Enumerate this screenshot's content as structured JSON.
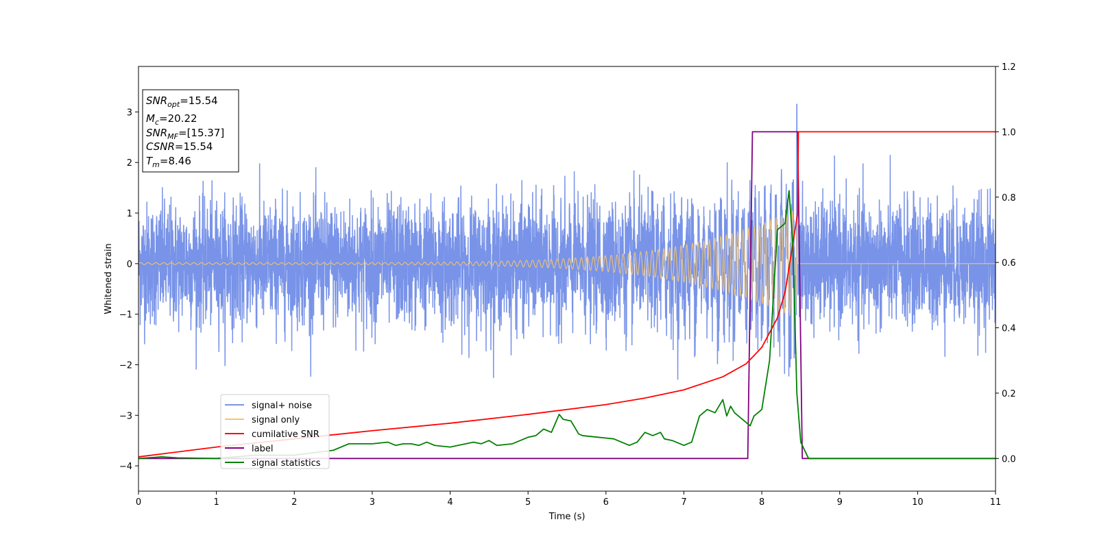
{
  "chart_data": {
    "type": "line",
    "xlabel": "Time (s)",
    "ylabel": "Whitened strain",
    "xlim": [
      0,
      11
    ],
    "ylim_left": [
      -4.5,
      3.9
    ],
    "ylim_right": [
      -0.1,
      1.2
    ],
    "x_ticks": [
      0,
      1,
      2,
      3,
      4,
      5,
      6,
      7,
      8,
      9,
      10,
      11
    ],
    "y_ticks_left": [
      -4,
      -3,
      -2,
      -1,
      0,
      1,
      2,
      3
    ],
    "y_ticks_left_labels": [
      "−4",
      "−3",
      "−2",
      "−1",
      "0",
      "1",
      "2",
      "3"
    ],
    "y_ticks_right": [
      0.0,
      0.2,
      0.4,
      0.6,
      0.8,
      1.0,
      1.2
    ],
    "y_ticks_right_labels": [
      "0.0",
      "0.2",
      "0.4",
      "0.6",
      "0.8",
      "1.0",
      "1.2"
    ],
    "legend_position": "lower-left",
    "info_box": {
      "snr_opt": "15.54",
      "mc": "20.22",
      "snr_mf": "[15.37]",
      "csnr": "15.54",
      "tm": "8.46"
    },
    "series": [
      {
        "name": "signal+ noise",
        "axis": "left",
        "color": "#7893e8",
        "description_values": {
          "noise_std": 0.6,
          "spike_max": 3.15,
          "spike_at": 8.45
        }
      },
      {
        "name": "signal only",
        "axis": "left",
        "color": "#f5c46e",
        "chirp": {
          "start": 0,
          "end": 8.46,
          "amplitude_start": 0.02,
          "amplitude_end": 1.1
        }
      },
      {
        "name": "cumilative SNR",
        "axis": "right",
        "color": "#ff0000",
        "x": [
          0,
          1,
          2,
          3,
          4,
          5,
          6,
          6.5,
          7,
          7.5,
          7.8,
          8.0,
          8.2,
          8.3,
          8.4,
          8.46,
          8.47,
          11
        ],
        "y": [
          0.005,
          0.035,
          0.06,
          0.085,
          0.108,
          0.135,
          0.165,
          0.185,
          0.21,
          0.25,
          0.29,
          0.34,
          0.43,
          0.51,
          0.66,
          0.75,
          1.0,
          1.0
        ]
      },
      {
        "name": "label",
        "axis": "right",
        "color": "#800080",
        "x": [
          0,
          7.82,
          7.88,
          8.46,
          8.52,
          11
        ],
        "y": [
          0,
          0,
          1,
          1,
          0,
          0
        ]
      },
      {
        "name": "signal statistics",
        "axis": "right",
        "color": "#008000",
        "x": [
          0,
          0.3,
          0.5,
          1.0,
          1.5,
          2.0,
          2.5,
          2.7,
          2.8,
          3.0,
          3.2,
          3.3,
          3.4,
          3.5,
          3.6,
          3.7,
          3.8,
          4.0,
          4.3,
          4.4,
          4.5,
          4.6,
          4.8,
          5.0,
          5.1,
          5.2,
          5.3,
          5.4,
          5.45,
          5.55,
          5.65,
          5.7,
          5.9,
          6.1,
          6.3,
          6.4,
          6.5,
          6.6,
          6.7,
          6.75,
          6.85,
          7.0,
          7.1,
          7.2,
          7.25,
          7.3,
          7.4,
          7.5,
          7.55,
          7.6,
          7.65,
          7.75,
          7.85,
          7.9,
          8.0,
          8.1,
          8.2,
          8.3,
          8.35,
          8.4,
          8.45,
          8.5,
          8.6,
          11
        ],
        "y": [
          0.0,
          0.005,
          0.002,
          0.0,
          0.01,
          0.01,
          0.025,
          0.045,
          0.045,
          0.045,
          0.05,
          0.04,
          0.045,
          0.045,
          0.04,
          0.05,
          0.04,
          0.035,
          0.05,
          0.045,
          0.055,
          0.04,
          0.045,
          0.065,
          0.07,
          0.09,
          0.08,
          0.135,
          0.12,
          0.115,
          0.075,
          0.07,
          0.065,
          0.06,
          0.04,
          0.05,
          0.08,
          0.07,
          0.08,
          0.06,
          0.055,
          0.04,
          0.05,
          0.13,
          0.14,
          0.15,
          0.14,
          0.18,
          0.13,
          0.16,
          0.14,
          0.12,
          0.1,
          0.13,
          0.15,
          0.3,
          0.7,
          0.72,
          0.82,
          0.65,
          0.2,
          0.05,
          0.0,
          0.0
        ]
      }
    ]
  }
}
